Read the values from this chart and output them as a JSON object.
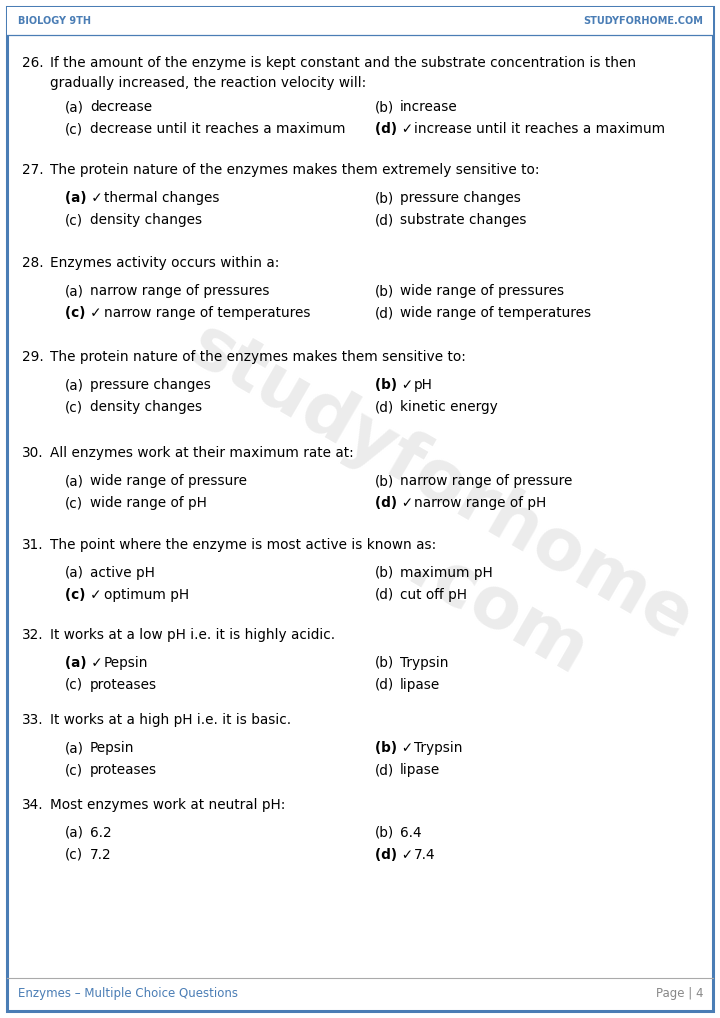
{
  "header_left": "Biology 9th",
  "header_right": "StudyForHome.Com",
  "footer_left": "Enzymes – Multiple Choice Questions",
  "footer_right": "Page | 4",
  "header_color": "#4a7db5",
  "border_color": "#4a7db5",
  "bg_color": "#ffffff",
  "text_color": "#000000",
  "questions": [
    {
      "num": "26.",
      "question": "If the amount of the enzyme is kept constant and the substrate concentration is then\ngradually increased, the reaction velocity will:",
      "two_line_q": true,
      "options": [
        {
          "label": "(a)",
          "check": false,
          "text": "decrease"
        },
        {
          "label": "(b)",
          "check": false,
          "text": "increase"
        },
        {
          "label": "(c)",
          "check": false,
          "text": "decrease until it reaches a maximum"
        },
        {
          "label": "(d)",
          "check": true,
          "text": "increase until it reaches a maximum"
        }
      ]
    },
    {
      "num": "27.",
      "question": "The protein nature of the enzymes makes them extremely sensitive to:",
      "two_line_q": false,
      "options": [
        {
          "label": "(a)",
          "check": true,
          "text": "thermal changes"
        },
        {
          "label": "(b)",
          "check": false,
          "text": "pressure changes"
        },
        {
          "label": "(c)",
          "check": false,
          "text": "density changes"
        },
        {
          "label": "(d)",
          "check": false,
          "text": "substrate changes"
        }
      ]
    },
    {
      "num": "28.",
      "question": "Enzymes activity occurs within a:",
      "two_line_q": false,
      "options": [
        {
          "label": "(a)",
          "check": false,
          "text": "narrow range of pressures"
        },
        {
          "label": "(b)",
          "check": false,
          "text": "wide range of pressures"
        },
        {
          "label": "(c)",
          "check": true,
          "text": "narrow range of temperatures"
        },
        {
          "label": "(d)",
          "check": false,
          "text": "wide range of temperatures"
        }
      ]
    },
    {
      "num": "29.",
      "question": "The protein nature of the enzymes makes them sensitive to:",
      "two_line_q": false,
      "options": [
        {
          "label": "(a)",
          "check": false,
          "text": "pressure changes"
        },
        {
          "label": "(b)",
          "check": true,
          "text": "pH"
        },
        {
          "label": "(c)",
          "check": false,
          "text": "density changes"
        },
        {
          "label": "(d)",
          "check": false,
          "text": "kinetic energy"
        }
      ]
    },
    {
      "num": "30.",
      "question": "All enzymes work at their maximum rate at:",
      "two_line_q": false,
      "options": [
        {
          "label": "(a)",
          "check": false,
          "text": "wide range of pressure"
        },
        {
          "label": "(b)",
          "check": false,
          "text": "narrow range of pressure"
        },
        {
          "label": "(c)",
          "check": false,
          "text": "wide range of pH"
        },
        {
          "label": "(d)",
          "check": true,
          "text": "narrow range of pH"
        }
      ]
    },
    {
      "num": "31.",
      "question": "The point where the enzyme is most active is known as:",
      "two_line_q": false,
      "options": [
        {
          "label": "(a)",
          "check": false,
          "text": "active pH"
        },
        {
          "label": "(b)",
          "check": false,
          "text": "maximum pH"
        },
        {
          "label": "(c)",
          "check": true,
          "text": "optimum pH"
        },
        {
          "label": "(d)",
          "check": false,
          "text": "cut off pH"
        }
      ]
    },
    {
      "num": "32.",
      "question": "It works at a low pH i.e. it is highly acidic.",
      "two_line_q": false,
      "options": [
        {
          "label": "(a)",
          "check": true,
          "text": "Pepsin"
        },
        {
          "label": "(b)",
          "check": false,
          "text": "Trypsin"
        },
        {
          "label": "(c)",
          "check": false,
          "text": "proteases"
        },
        {
          "label": "(d)",
          "check": false,
          "text": "lipase"
        }
      ]
    },
    {
      "num": "33.",
      "question": "It works at a high pH i.e. it is basic.",
      "two_line_q": false,
      "options": [
        {
          "label": "(a)",
          "check": false,
          "text": "Pepsin"
        },
        {
          "label": "(b)",
          "check": true,
          "text": "Trypsin"
        },
        {
          "label": "(c)",
          "check": false,
          "text": "proteases"
        },
        {
          "label": "(d)",
          "check": false,
          "text": "lipase"
        }
      ]
    },
    {
      "num": "34.",
      "question": "Most enzymes work at neutral pH:",
      "two_line_q": false,
      "options": [
        {
          "label": "(a)",
          "check": false,
          "text": "6.2"
        },
        {
          "label": "(b)",
          "check": false,
          "text": "6.4"
        },
        {
          "label": "(c)",
          "check": false,
          "text": "7.2"
        },
        {
          "label": "(d)",
          "check": true,
          "text": "7.4"
        }
      ]
    }
  ],
  "watermark": "studyforhome\n.com"
}
